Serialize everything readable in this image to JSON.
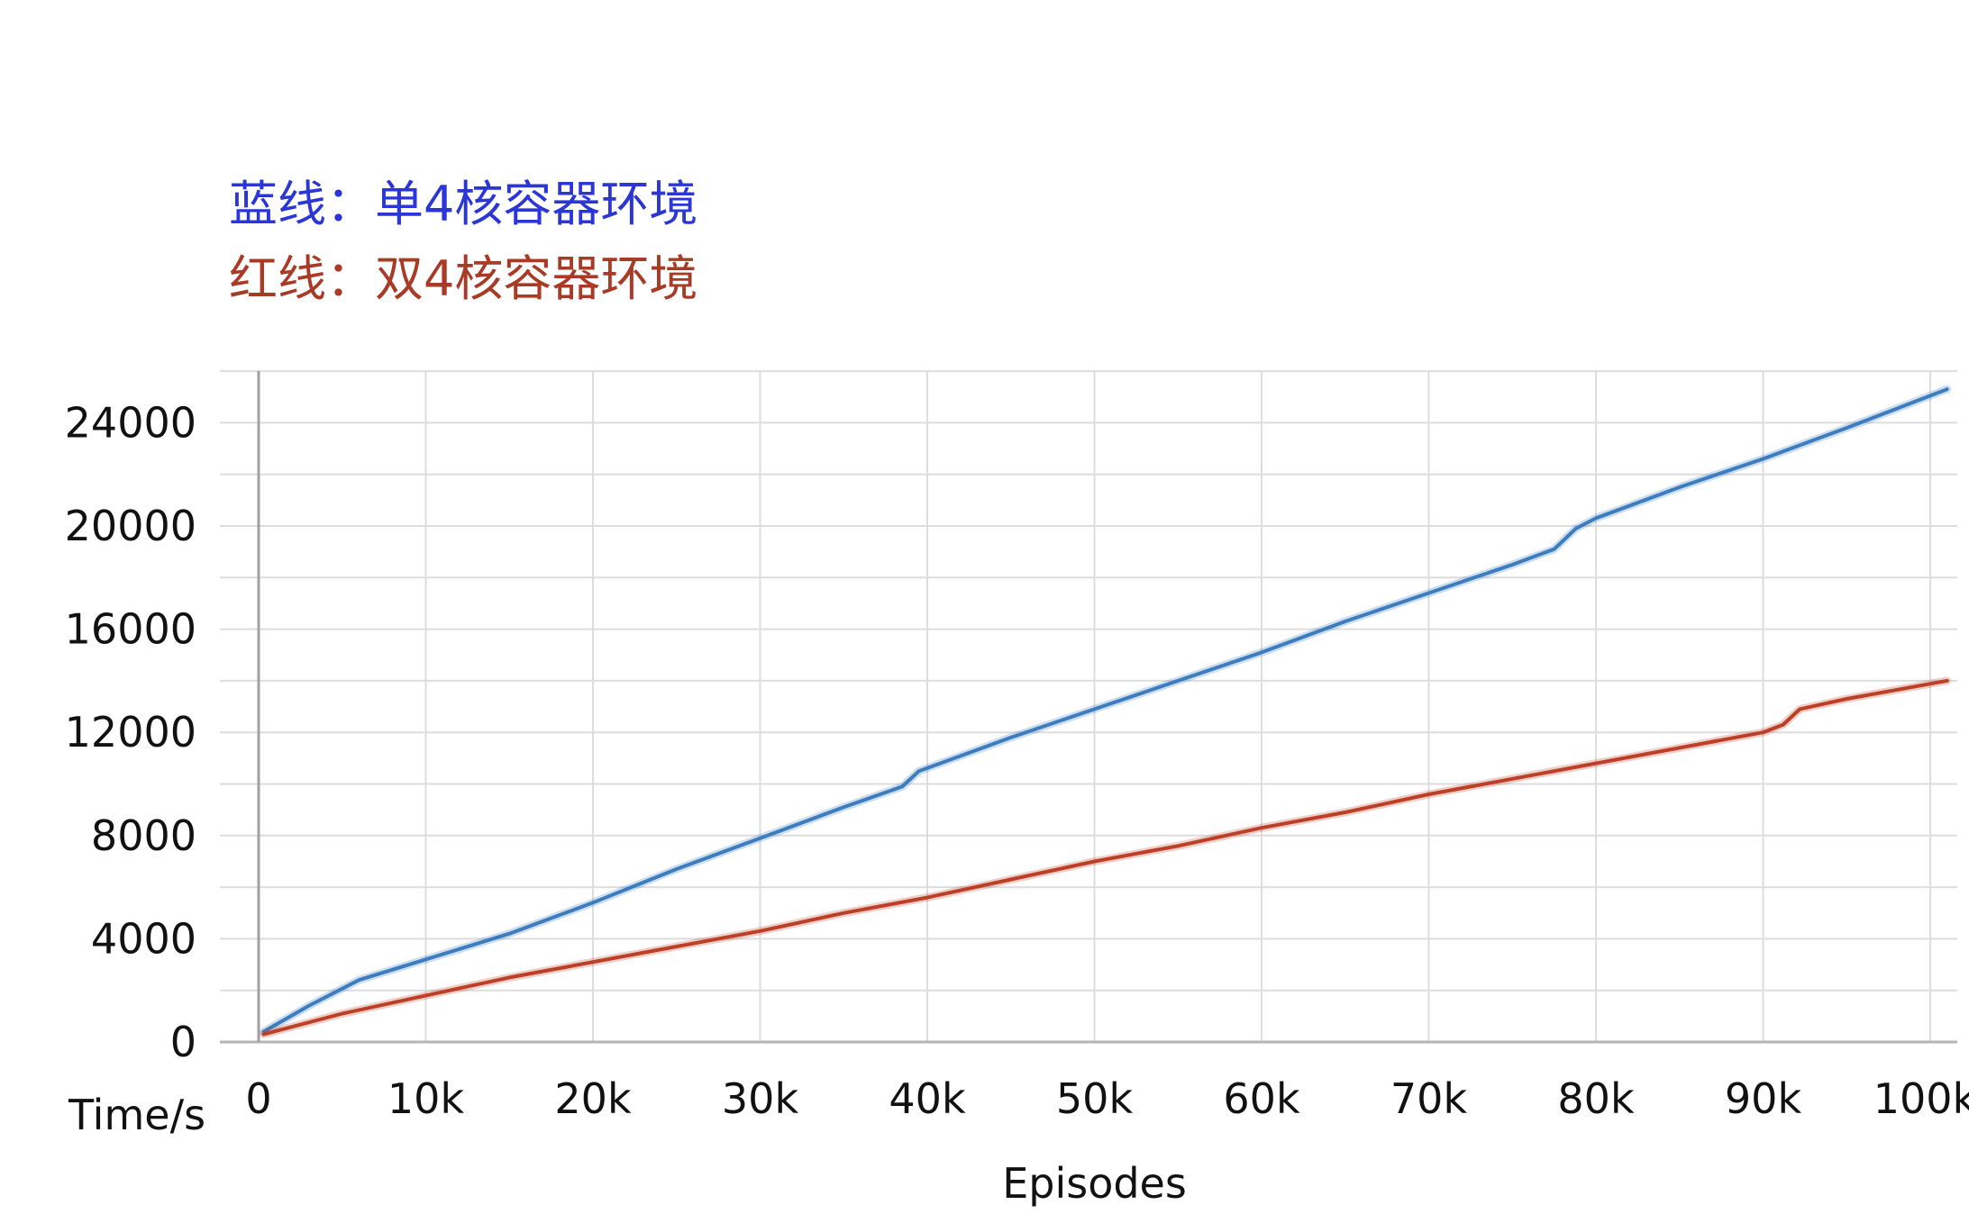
{
  "legend": [
    {
      "label": "蓝线：单4核容器环境",
      "color": "#2b36d6"
    },
    {
      "label": "红线：双4核容器环境",
      "color": "#a83a26"
    }
  ],
  "chart_data": {
    "type": "line",
    "xlabel": "Episodes",
    "ylabel": "Time/s",
    "xlim": [
      0,
      101000
    ],
    "ylim": [
      0,
      26000
    ],
    "x_ticks": [
      0,
      10000,
      20000,
      30000,
      40000,
      50000,
      60000,
      70000,
      80000,
      90000,
      100000
    ],
    "x_tick_labels": [
      "0",
      "10k",
      "20k",
      "30k",
      "40k",
      "50k",
      "60k",
      "70k",
      "80k",
      "90k",
      "100k"
    ],
    "y_ticks": [
      0,
      4000,
      8000,
      12000,
      16000,
      20000,
      24000
    ],
    "y_tick_labels": [
      "0",
      "4000",
      "8000",
      "12000",
      "16000",
      "20000",
      "24000"
    ],
    "grid": true,
    "series": [
      {
        "color": "#3b7dbf",
        "x": [
          300,
          3000,
          6000,
          10000,
          15000,
          20000,
          25000,
          30000,
          35000,
          38500,
          39500,
          45000,
          50000,
          55000,
          60000,
          65000,
          70000,
          75000,
          77500,
          78800,
          80000,
          85000,
          90000,
          95000,
          101000
        ],
        "y": [
          400,
          1400,
          2400,
          3200,
          4200,
          5400,
          6700,
          7900,
          9100,
          9900,
          10500,
          11800,
          12900,
          14000,
          15100,
          16300,
          17400,
          18500,
          19100,
          19900,
          20300,
          21500,
          22600,
          23800,
          25300
        ]
      },
      {
        "color": "#bc3f26",
        "x": [
          300,
          5000,
          10000,
          15000,
          20000,
          25000,
          30000,
          35000,
          40000,
          45000,
          50000,
          55000,
          60000,
          65000,
          70000,
          75000,
          80000,
          85000,
          90000,
          91200,
          92200,
          95000,
          101000
        ],
        "y": [
          300,
          1100,
          1800,
          2500,
          3100,
          3700,
          4300,
          5000,
          5600,
          6300,
          7000,
          7600,
          8300,
          8900,
          9600,
          10200,
          10800,
          11400,
          12000,
          12300,
          12900,
          13300,
          14000
        ]
      }
    ]
  }
}
